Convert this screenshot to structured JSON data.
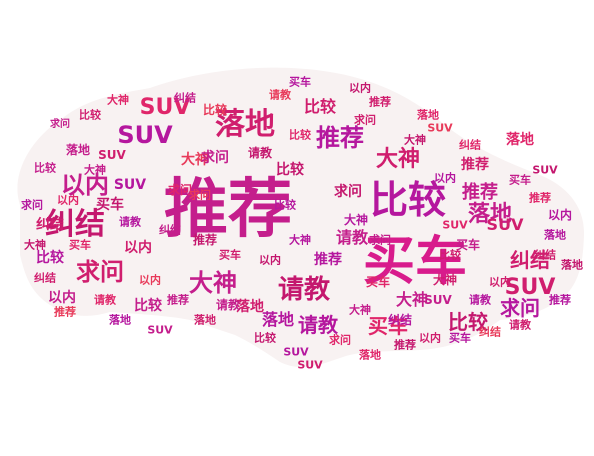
{
  "background_color": "#ffffff",
  "shape_color": "#f8f2f2",
  "palette": [
    "#e8157a",
    "#c41e8c",
    "#d01e6e",
    "#e0266a",
    "#b5179e",
    "#e83a5a"
  ],
  "words": [
    {
      "text": "推荐",
      "color": "#c41e8c"
    },
    {
      "text": "买车",
      "color": "#d81b8c"
    },
    {
      "text": "比较",
      "color": "#b5179e"
    },
    {
      "text": "落地",
      "color": "#d01e6e"
    },
    {
      "text": "纠结",
      "color": "#c4176e"
    },
    {
      "text": "SUV",
      "color": "#e0266a"
    },
    {
      "text": "SUV",
      "color": "#b5179e"
    },
    {
      "text": "SUV",
      "color": "#d01e6e"
    },
    {
      "text": "以内",
      "color": "#c41e8c"
    },
    {
      "text": "求问",
      "color": "#d01e6e"
    },
    {
      "text": "大神",
      "color": "#c41e8c"
    },
    {
      "text": "请教",
      "color": "#c4176e"
    },
    {
      "text": "推荐",
      "color": "#b5179e"
    },
    {
      "text": "大神",
      "color": "#d01e6e"
    },
    {
      "text": "落地",
      "color": "#c41e8c"
    },
    {
      "text": "请教",
      "color": "#b5179e"
    },
    {
      "text": "买车",
      "color": "#e0266a"
    },
    {
      "text": "比较",
      "color": "#c4176e"
    },
    {
      "text": "纠结",
      "color": "#d01e6e"
    },
    {
      "text": "求问",
      "color": "#b5179e"
    },
    {
      "text": "推荐",
      "color": "#c41e8c"
    },
    {
      "text": "落地",
      "color": "#b5179e"
    },
    {
      "text": "比较",
      "color": "#d01e6e"
    },
    {
      "text": "大神",
      "color": "#c41e8c"
    },
    {
      "text": "落地",
      "color": "#e0266a"
    },
    {
      "text": "请教",
      "color": "#c41e8c"
    },
    {
      "text": "SUV",
      "color": "#d01e6e"
    },
    {
      "text": "求问",
      "color": "#c4176e"
    },
    {
      "text": "推荐",
      "color": "#d01e6e"
    },
    {
      "text": "比较",
      "color": "#c41e8c"
    },
    {
      "text": "比较",
      "color": "#b5179e"
    },
    {
      "text": "以内",
      "color": "#c41e8c"
    },
    {
      "text": "纠结",
      "color": "#d01e6e"
    },
    {
      "text": "买车",
      "color": "#c4176e"
    },
    {
      "text": "SUV",
      "color": "#b5179e"
    },
    {
      "text": "大神",
      "color": "#e83a5a"
    },
    {
      "text": "求问",
      "color": "#c41e8c"
    },
    {
      "text": "落地",
      "color": "#d01e6e"
    },
    {
      "text": "比较",
      "color": "#c4176e"
    },
    {
      "text": "推荐",
      "color": "#b5179e"
    },
    {
      "text": "以内",
      "color": "#d01e6e"
    },
    {
      "text": "请教",
      "color": "#c41e8c"
    },
    {
      "text": "买车",
      "color": "#e0266a"
    },
    {
      "text": "SUV",
      "color": "#c41e8c"
    },
    {
      "text": "纠结",
      "color": "#b5179e"
    },
    {
      "text": "大神",
      "color": "#d01e6e"
    },
    {
      "text": "推荐",
      "color": "#c4176e"
    },
    {
      "text": "求问",
      "color": "#e0266a"
    },
    {
      "text": "以内",
      "color": "#b5179e"
    },
    {
      "text": "落地",
      "color": "#c41e8c"
    },
    {
      "text": "SUV",
      "color": "#d01e6e"
    },
    {
      "text": "比较",
      "color": "#e83a5a"
    },
    {
      "text": "请教",
      "color": "#c4176e"
    },
    {
      "text": "大神",
      "color": "#b5179e"
    },
    {
      "text": "买车",
      "color": "#c41e8c"
    },
    {
      "text": "纠结",
      "color": "#e0266a"
    },
    {
      "text": "以内",
      "color": "#d01e6e"
    },
    {
      "text": "推荐",
      "color": "#e0266a"
    },
    {
      "text": "落地",
      "color": "#b5179e"
    },
    {
      "text": "SUV",
      "color": "#c4176e"
    },
    {
      "text": "求问",
      "color": "#c41e8c"
    },
    {
      "text": "比较",
      "color": "#d01e6e"
    },
    {
      "text": "大神",
      "color": "#e0266a"
    },
    {
      "text": "纠结",
      "color": "#c41e8c"
    },
    {
      "text": "请教",
      "color": "#e83a5a"
    },
    {
      "text": "买车",
      "color": "#b5179e"
    },
    {
      "text": "以内",
      "color": "#c4176e"
    },
    {
      "text": "推荐",
      "color": "#d01e6e"
    },
    {
      "text": "落地",
      "color": "#e0266a"
    },
    {
      "text": "SUV",
      "color": "#e83a5a"
    },
    {
      "text": "比较",
      "color": "#c41e8c"
    },
    {
      "text": "求问",
      "color": "#b5179e"
    },
    {
      "text": "大神",
      "color": "#c4176e"
    },
    {
      "text": "纠结",
      "color": "#d01e6e"
    },
    {
      "text": "买车",
      "color": "#e0266a"
    },
    {
      "text": "请教",
      "color": "#b5179e"
    },
    {
      "text": "以内",
      "color": "#e83a5a"
    },
    {
      "text": "推荐",
      "color": "#c41e8c"
    },
    {
      "text": "落地",
      "color": "#d01e6e"
    },
    {
      "text": "比较",
      "color": "#c4176e"
    },
    {
      "text": "SUV",
      "color": "#b5179e"
    },
    {
      "text": "求问",
      "color": "#e0266a"
    },
    {
      "text": "大神",
      "color": "#c41e8c"
    },
    {
      "text": "以内",
      "color": "#d01e6e"
    },
    {
      "text": "买车",
      "color": "#b5179e"
    },
    {
      "text": "纠结",
      "color": "#e83a5a"
    },
    {
      "text": "请教",
      "color": "#d01e6e"
    },
    {
      "text": "推荐",
      "color": "#b5179e"
    },
    {
      "text": "落地",
      "color": "#c4176e"
    },
    {
      "text": "SUV",
      "color": "#e0266a"
    },
    {
      "text": "比较",
      "color": "#d01e6e"
    },
    {
      "text": "求问",
      "color": "#c41e8c"
    },
    {
      "text": "大神",
      "color": "#b5179e"
    },
    {
      "text": "以内",
      "color": "#c4176e"
    },
    {
      "text": "买车",
      "color": "#d01e6e"
    },
    {
      "text": "纠结",
      "color": "#c41e8c"
    },
    {
      "text": "请教",
      "color": "#e0266a"
    },
    {
      "text": "推荐",
      "color": "#e83a5a"
    },
    {
      "text": "落地",
      "color": "#b5179e"
    },
    {
      "text": "SUV",
      "color": "#c41e8c"
    },
    {
      "text": "比较",
      "color": "#e0266a"
    },
    {
      "text": "求问",
      "color": "#d01e6e"
    },
    {
      "text": "大神",
      "color": "#c4176e"
    },
    {
      "text": "以内",
      "color": "#b5179e"
    },
    {
      "text": "买车",
      "color": "#c41e8c"
    },
    {
      "text": "纠结",
      "color": "#d01e6e"
    },
    {
      "text": "请教",
      "color": "#b5179e"
    },
    {
      "text": "推荐",
      "color": "#c4176e"
    },
    {
      "text": "落地",
      "color": "#e0266a"
    },
    {
      "text": "SUV",
      "color": "#d01e6e"
    },
    {
      "text": "比较",
      "color": "#b5179e"
    },
    {
      "text": "求问",
      "color": "#e83a5a"
    },
    {
      "text": "大神",
      "color": "#c41e8c"
    },
    {
      "text": "以内",
      "color": "#e0266a"
    }
  ]
}
